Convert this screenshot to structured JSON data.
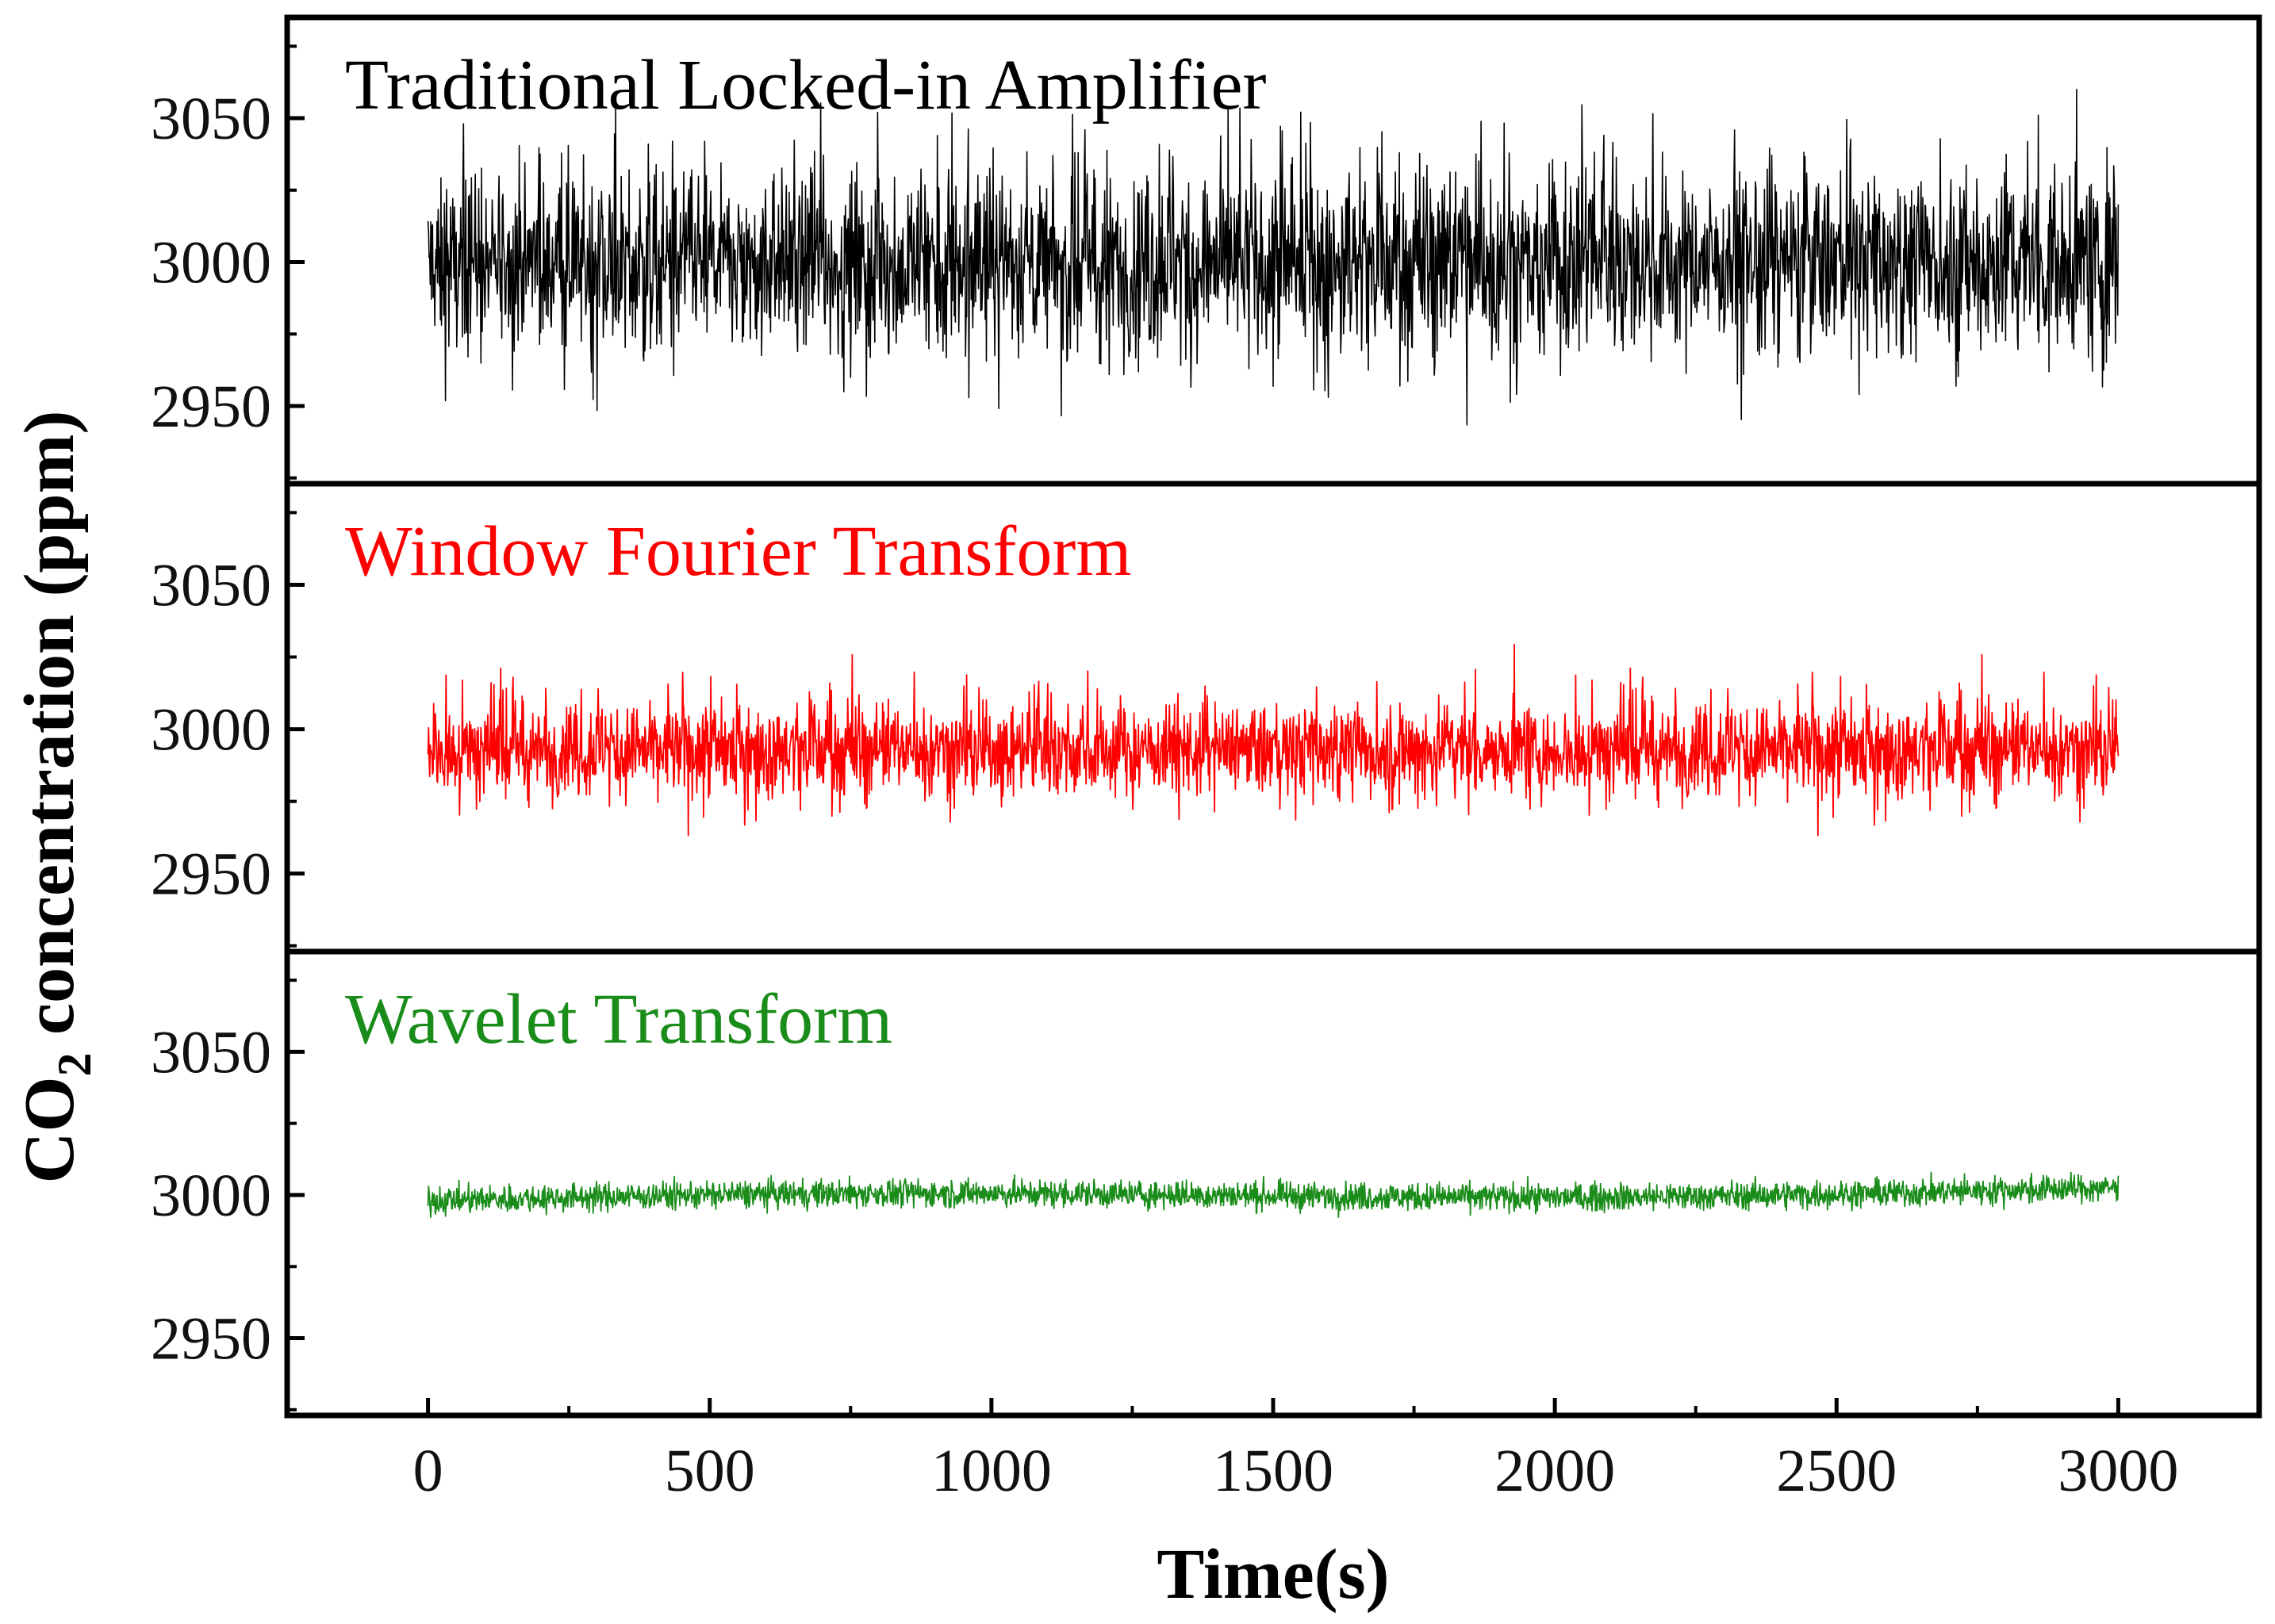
{
  "chart_data": {
    "type": "line",
    "xlabel": "Time(s)",
    "ylabel": "CO2 concentration (ppm)",
    "ylabel_main": "CO",
    "ylabel_sub": "2",
    "ylabel_rest": " concentration (ppm)",
    "xlim": [
      -250,
      3250
    ],
    "x_ticks": [
      0,
      500,
      1000,
      1500,
      2000,
      2500,
      3000
    ],
    "x_tick_labels": [
      "0",
      "500",
      "1000",
      "1500",
      "2000",
      "2500",
      "3000"
    ],
    "sampling": {
      "t_start": 0,
      "t_end": 3000,
      "interval_s": 1
    },
    "panels": [
      {
        "name": "Traditional Locked-in Amplifier",
        "label": "Traditional Locked-in Amplifier",
        "color": "#000000",
        "ylim": [
          2923,
          3085
        ],
        "y_ticks": [
          2950,
          3000,
          3050
        ],
        "y_tick_labels": [
          "2950",
          "3000",
          "3050"
        ],
        "mean": 3000,
        "min": 2925,
        "max": 3060,
        "mean_abs_dev": 20
      },
      {
        "name": "Window Fourier Transform",
        "label": "Window Fourier Transform",
        "color": "#ff0000",
        "ylim": [
          2923,
          3085
        ],
        "y_ticks": [
          2950,
          3000,
          3050
        ],
        "y_tick_labels": [
          "2950",
          "3000",
          "3050"
        ],
        "mean": 2993,
        "min": 2952,
        "max": 3032,
        "mean_abs_dev": 10
      },
      {
        "name": "Wavelet Transform",
        "label": "Wavelet Transform",
        "color": "#1a8c1a",
        "ylim": [
          2923,
          3085
        ],
        "y_ticks": [
          2950,
          3000,
          3050
        ],
        "y_tick_labels": [
          "2950",
          "3000",
          "3050"
        ],
        "mean": 3000,
        "min": 2983,
        "max": 3010,
        "mean_abs_dev": 3
      }
    ]
  }
}
